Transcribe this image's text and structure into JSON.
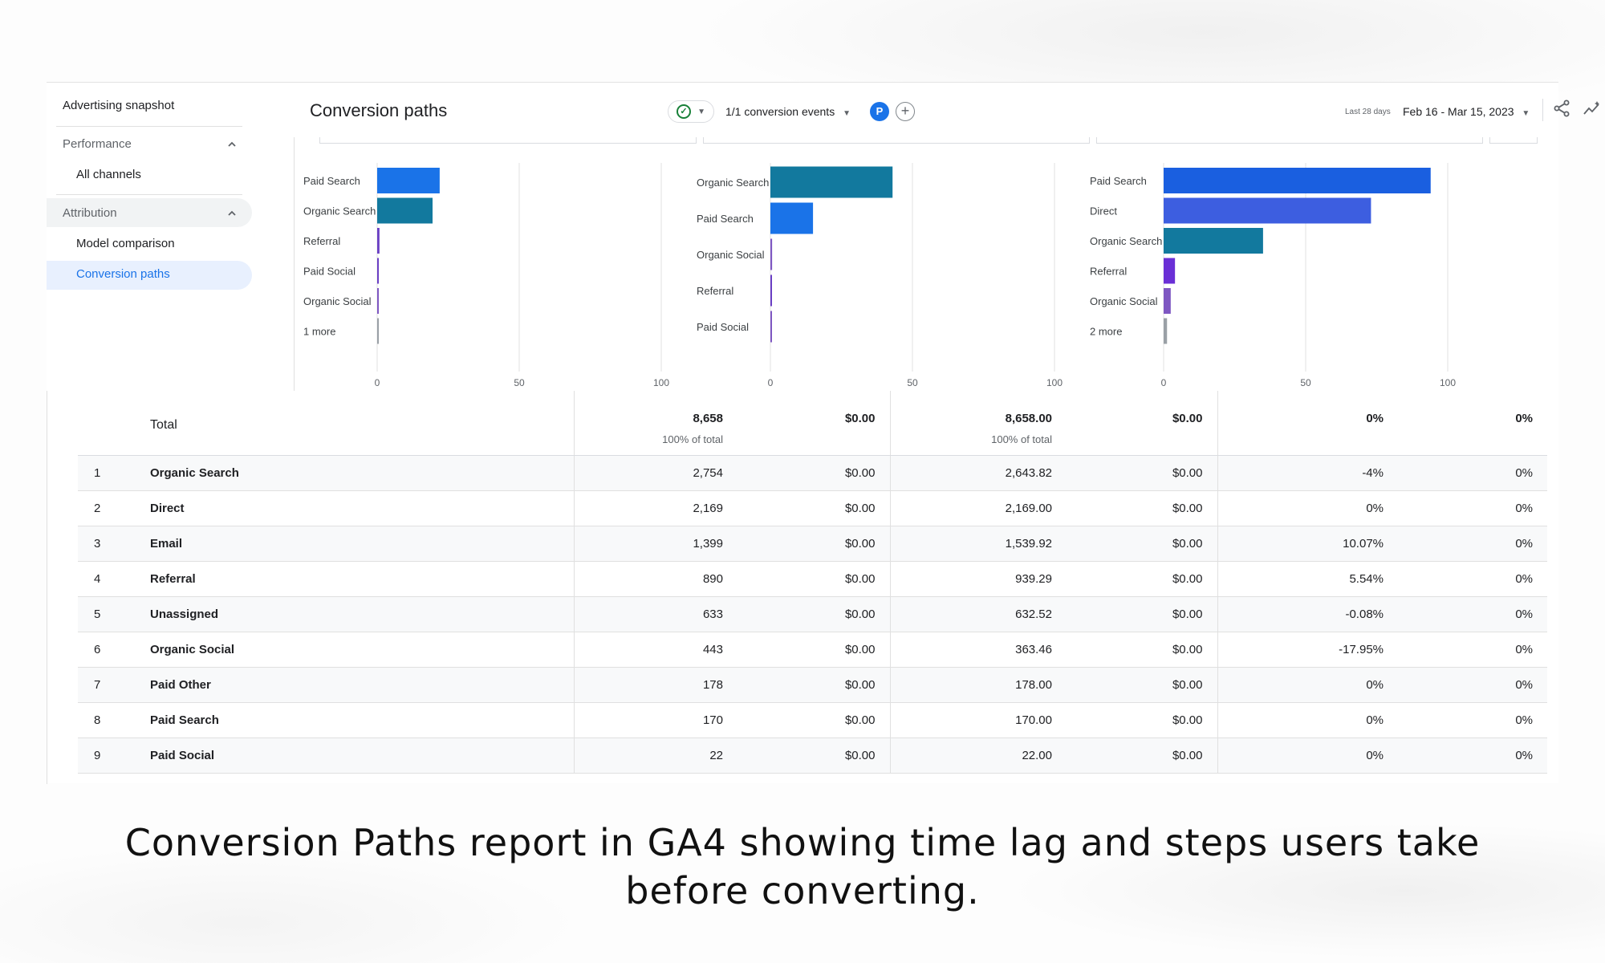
{
  "sidebar": {
    "advertising_snapshot": "Advertising snapshot",
    "performance": "Performance",
    "all_channels": "All channels",
    "attribution": "Attribution",
    "model_comparison": "Model comparison",
    "conversion_paths": "Conversion paths"
  },
  "header": {
    "title": "Conversion paths",
    "conversion_events": "1/1 conversion events",
    "avatar_letter": "P",
    "range_label": "Last 28 days",
    "range_value": "Feb 16 - Mar 15, 2023"
  },
  "chart_data": [
    {
      "type": "bar",
      "orientation": "horizontal",
      "categories": [
        "Paid Search",
        "Organic Search",
        "Referral",
        "Paid Social",
        "Organic Social",
        "1 more"
      ],
      "values": [
        22,
        19.5,
        0.8,
        0.5,
        0.3,
        0
      ],
      "colors": [
        "#1a73e8",
        "#12799e",
        "#6a3fc4",
        "#6a3fc4",
        "#7e57c2",
        "#9aa0a6"
      ],
      "xlim": [
        0,
        100
      ],
      "xticks": [
        "0",
        "50",
        "100"
      ]
    },
    {
      "type": "bar",
      "orientation": "horizontal",
      "categories": [
        "Organic Search",
        "Paid Search",
        "Organic Social",
        "Referral",
        "Paid Social"
      ],
      "values": [
        43,
        15,
        0.6,
        0.5,
        0.3
      ],
      "colors": [
        "#12799e",
        "#1a73e8",
        "#7e57c2",
        "#6a3fc4",
        "#7e57c2"
      ],
      "xlim": [
        0,
        100
      ],
      "xticks": [
        "0",
        "50",
        "100"
      ]
    },
    {
      "type": "bar",
      "orientation": "horizontal",
      "categories": [
        "Paid Search",
        "Direct",
        "Organic Search",
        "Referral",
        "Organic Social",
        "2 more"
      ],
      "values": [
        94,
        73,
        35,
        4,
        2.5,
        1.2
      ],
      "colors": [
        "#1a5fe0",
        "#3d5ee0",
        "#12799e",
        "#6a2fd6",
        "#7e57c2",
        "#9aa0a6"
      ],
      "xlim": [
        0,
        100
      ],
      "xticks": [
        "0",
        "50",
        "100"
      ]
    }
  ],
  "table": {
    "total": {
      "label": "Total",
      "col1": "8,658",
      "col1_sub": "100% of total",
      "col2": "$0.00",
      "col3": "8,658.00",
      "col3_sub": "100% of total",
      "col4": "$0.00",
      "col5": "0%",
      "col6": "0%"
    },
    "rows": [
      {
        "idx": "1",
        "name": "Organic Search",
        "c1": "2,754",
        "c2": "$0.00",
        "c3": "2,643.82",
        "c4": "$0.00",
        "c5": "-4%",
        "c6": "0%"
      },
      {
        "idx": "2",
        "name": "Direct",
        "c1": "2,169",
        "c2": "$0.00",
        "c3": "2,169.00",
        "c4": "$0.00",
        "c5": "0%",
        "c6": "0%"
      },
      {
        "idx": "3",
        "name": "Email",
        "c1": "1,399",
        "c2": "$0.00",
        "c3": "1,539.92",
        "c4": "$0.00",
        "c5": "10.07%",
        "c6": "0%"
      },
      {
        "idx": "4",
        "name": "Referral",
        "c1": "890",
        "c2": "$0.00",
        "c3": "939.29",
        "c4": "$0.00",
        "c5": "5.54%",
        "c6": "0%"
      },
      {
        "idx": "5",
        "name": "Unassigned",
        "c1": "633",
        "c2": "$0.00",
        "c3": "632.52",
        "c4": "$0.00",
        "c5": "-0.08%",
        "c6": "0%"
      },
      {
        "idx": "6",
        "name": "Organic Social",
        "c1": "443",
        "c2": "$0.00",
        "c3": "363.46",
        "c4": "$0.00",
        "c5": "-17.95%",
        "c6": "0%"
      },
      {
        "idx": "7",
        "name": "Paid Other",
        "c1": "178",
        "c2": "$0.00",
        "c3": "178.00",
        "c4": "$0.00",
        "c5": "0%",
        "c6": "0%"
      },
      {
        "idx": "8",
        "name": "Paid Search",
        "c1": "170",
        "c2": "$0.00",
        "c3": "170.00",
        "c4": "$0.00",
        "c5": "0%",
        "c6": "0%"
      },
      {
        "idx": "9",
        "name": "Paid Social",
        "c1": "22",
        "c2": "$0.00",
        "c3": "22.00",
        "c4": "$0.00",
        "c5": "0%",
        "c6": "0%"
      }
    ]
  },
  "caption": "Conversion Paths report in GA4 showing time lag and steps users take before converting."
}
